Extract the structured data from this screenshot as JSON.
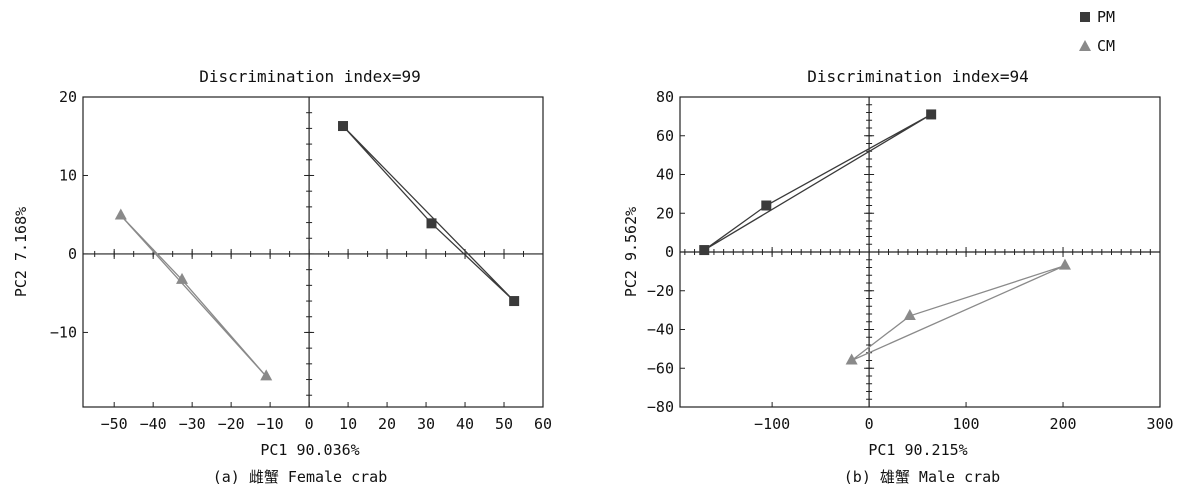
{
  "legend": [
    {
      "label": "PM",
      "marker": "square",
      "color": "#3a3a3a"
    },
    {
      "label": "CM",
      "marker": "triangle",
      "color": "#8a8a8a"
    }
  ],
  "chart_data": [
    {
      "type": "scatter",
      "title": "Discrimination index=99",
      "xlabel": "PC1 90.036%",
      "ylabel": "PC2 7.168%",
      "caption": "(a) 雌蟹 Female crab",
      "xlim": [
        -58,
        60
      ],
      "ylim": [
        -19.5,
        20
      ],
      "xticks": [
        -50,
        -40,
        -30,
        -20,
        -10,
        0,
        10,
        20,
        30,
        40,
        50,
        60
      ],
      "yticks": [
        20,
        10,
        0,
        -10
      ],
      "series": [
        {
          "name": "PM",
          "marker": "square",
          "color": "#3a3a3a",
          "points": [
            [
              8.7,
              16.3
            ],
            [
              31.4,
              3.9
            ],
            [
              52.6,
              -6.0
            ]
          ]
        },
        {
          "name": "CM",
          "marker": "triangle",
          "color": "#8a8a8a",
          "points": [
            [
              -48.3,
              4.9
            ],
            [
              -32.6,
              -3.3
            ],
            [
              -11.0,
              -15.6
            ]
          ]
        }
      ]
    },
    {
      "type": "scatter",
      "title": "Discrimination index=94",
      "xlabel": "PC1 90.215%",
      "ylabel": "PC2 9.562%",
      "caption": "(b) 雄蟹 Male crab",
      "xlim": [
        -195,
        300
      ],
      "ylim": [
        -80,
        80
      ],
      "xticks": [
        -100,
        0,
        100,
        200,
        300
      ],
      "yticks": [
        80,
        60,
        40,
        20,
        0,
        -20,
        -40,
        -60,
        -80
      ],
      "series": [
        {
          "name": "PM",
          "marker": "square",
          "color": "#3a3a3a",
          "points": [
            [
              -170,
              1
            ],
            [
              -106,
              24
            ],
            [
              64,
              71
            ]
          ]
        },
        {
          "name": "CM",
          "marker": "triangle",
          "color": "#8a8a8a",
          "points": [
            [
              -18,
              -56
            ],
            [
              42,
              -33
            ],
            [
              202,
              -7
            ]
          ]
        }
      ]
    }
  ]
}
